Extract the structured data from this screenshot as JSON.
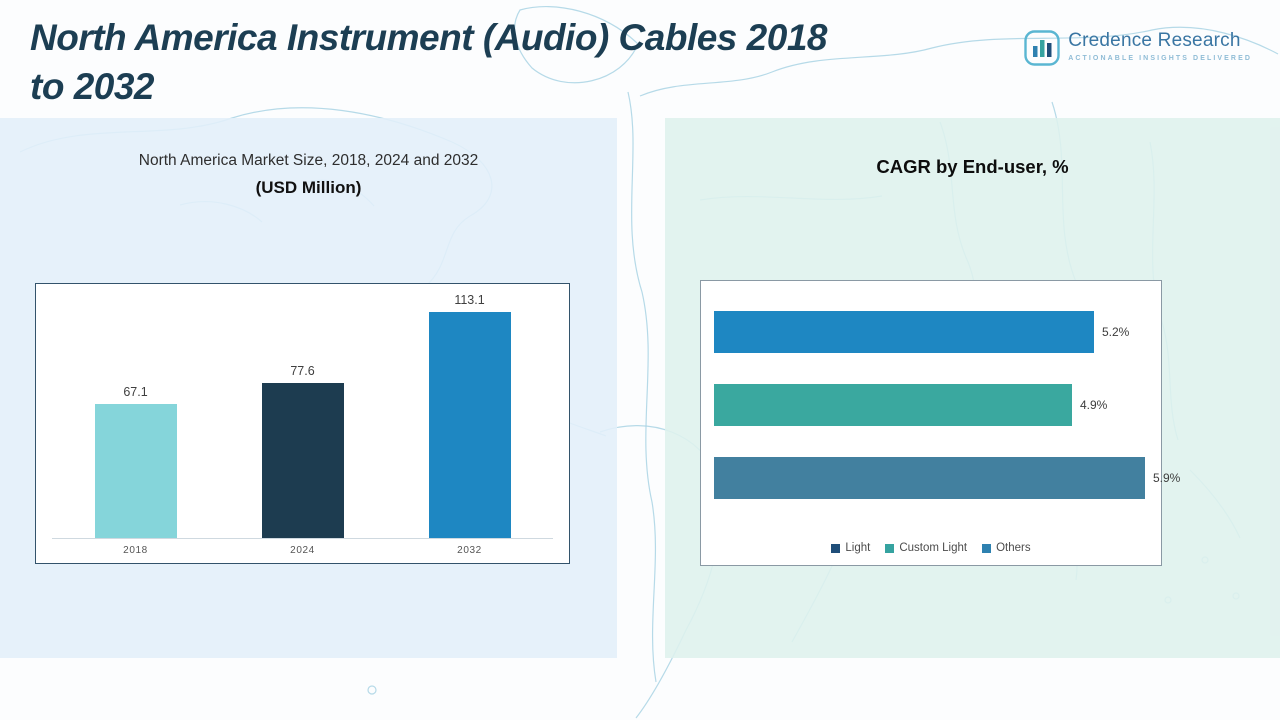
{
  "header": {
    "title_line1": "North America Instrument (Audio) Cables 2018",
    "title_line2": "to 2032"
  },
  "logo": {
    "name": "Credence Research",
    "tagline": "Actionable Insights Delivered"
  },
  "left_panel": {
    "subtitle_line1": "North America Market Size, 2018, 2024 and 2032",
    "subtitle_line2": "(USD Million)"
  },
  "right_panel": {
    "title": "CAGR by End-user, %"
  },
  "chart_data": [
    {
      "type": "bar",
      "orientation": "vertical",
      "title": "North America Market Size, 2018, 2024 and 2032 (USD Million)",
      "categories": [
        "2018",
        "2024",
        "2032"
      ],
      "values": [
        67.1,
        77.6,
        113.1
      ],
      "value_labels": [
        "67.1",
        "77.6",
        "113.1"
      ],
      "colors": [
        "#85d5da",
        "#1d3c50",
        "#1e87c2"
      ],
      "ylim": [
        0,
        125
      ],
      "grid": false,
      "legend_position": "none"
    },
    {
      "type": "bar",
      "orientation": "horizontal",
      "title": "CAGR by End-user, %",
      "categories": [
        "Light",
        "Custom Light",
        "Others"
      ],
      "values": [
        5.2,
        4.9,
        5.9
      ],
      "value_labels": [
        "5.2%",
        "4.9%",
        "5.9%"
      ],
      "colors": [
        "#1e87c2",
        "#3aa89f",
        "#42809f"
      ],
      "xlim": [
        0,
        6.2
      ],
      "grid": false,
      "legend_position": "bottom",
      "legend": [
        {
          "label": "Light",
          "color": "#1f4e79"
        },
        {
          "label": "Custom Light",
          "color": "#35a3a0"
        },
        {
          "label": "Others",
          "color": "#2e81b0"
        }
      ]
    }
  ]
}
